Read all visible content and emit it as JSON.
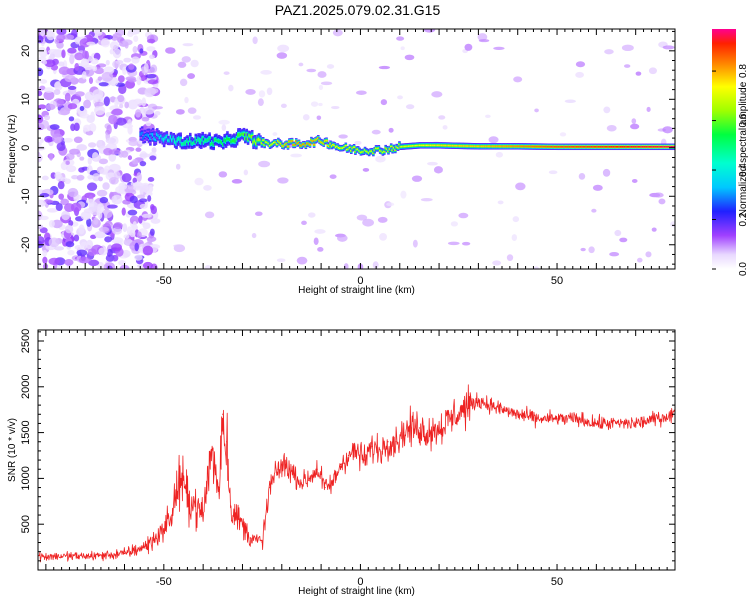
{
  "title": "PAZ1.2025.079.02.31.G15",
  "chart_data": [
    {
      "type": "heatmap",
      "title": "PAZ1.2025.079.02.31.G15",
      "xlabel": "Height of straight line (km)",
      "ylabel": "Frequency (Hz)",
      "xlim": [
        -82,
        80
      ],
      "ylim": [
        -25,
        24.5
      ],
      "xticks": [
        -50,
        0,
        50
      ],
      "yticks": [
        -20,
        -10,
        0,
        10,
        20
      ],
      "colorbar": {
        "label": "Normalized spectral amplitude",
        "range": [
          0,
          0.97
        ],
        "ticks": [
          0.0,
          0.2,
          0.4,
          0.6,
          0.8
        ]
      },
      "ridge_frequency": {
        "x": [
          -55,
          -50,
          -45,
          -40,
          -35,
          -30,
          -25,
          -20,
          -15,
          -10,
          -5,
          0,
          5,
          10,
          15,
          20,
          30,
          40,
          50,
          60,
          70,
          80
        ],
        "freq": [
          2.5,
          2.0,
          1.2,
          1.5,
          1.0,
          2.5,
          1.0,
          0.8,
          0.8,
          1.5,
          0.0,
          -0.5,
          -0.5,
          0.2,
          0.5,
          0.5,
          0.3,
          0.3,
          0.2,
          0.2,
          0.2,
          0.2
        ],
        "amplitude": [
          0.3,
          0.4,
          0.5,
          0.5,
          0.55,
          0.6,
          0.7,
          0.8,
          0.85,
          0.8,
          0.75,
          0.7,
          0.7,
          0.72,
          0.75,
          0.78,
          0.8,
          0.85,
          0.9,
          0.92,
          0.95,
          0.97
        ]
      }
    },
    {
      "type": "line",
      "xlabel": "Height of straight line (km)",
      "ylabel": "SNR (10 * v/v)",
      "xlim": [
        -82,
        80
      ],
      "ylim": [
        0,
        2620
      ],
      "xticks": [
        -50,
        0,
        50
      ],
      "yticks": [
        500,
        1000,
        1500,
        2000,
        2500
      ],
      "color": "#ee2222",
      "x": [
        -82,
        -75,
        -70,
        -65,
        -60,
        -55,
        -52,
        -50,
        -48,
        -46,
        -44,
        -42,
        -40,
        -38,
        -36,
        -35,
        -34,
        -33,
        -32,
        -30,
        -28,
        -25,
        -23,
        -21,
        -19,
        -17,
        -15,
        -13,
        -11,
        -9,
        -7,
        -5,
        -3,
        -1,
        1,
        3,
        5,
        7,
        9,
        11,
        13,
        15,
        17,
        20,
        23,
        26,
        28,
        30,
        33,
        36,
        40,
        45,
        50,
        55,
        60,
        65,
        70,
        75,
        80
      ],
      "y": [
        150,
        150,
        150,
        160,
        180,
        250,
        350,
        450,
        600,
        1000,
        800,
        700,
        600,
        1300,
        900,
        1700,
        1400,
        700,
        600,
        500,
        350,
        300,
        900,
        1100,
        1150,
        1050,
        950,
        1000,
        1100,
        900,
        950,
        1150,
        1250,
        1300,
        1200,
        1350,
        1300,
        1400,
        1400,
        1500,
        1550,
        1550,
        1500,
        1550,
        1650,
        1750,
        1800,
        1850,
        1800,
        1750,
        1700,
        1650,
        1650,
        1650,
        1600,
        1600,
        1600,
        1650,
        1700
      ]
    }
  ]
}
